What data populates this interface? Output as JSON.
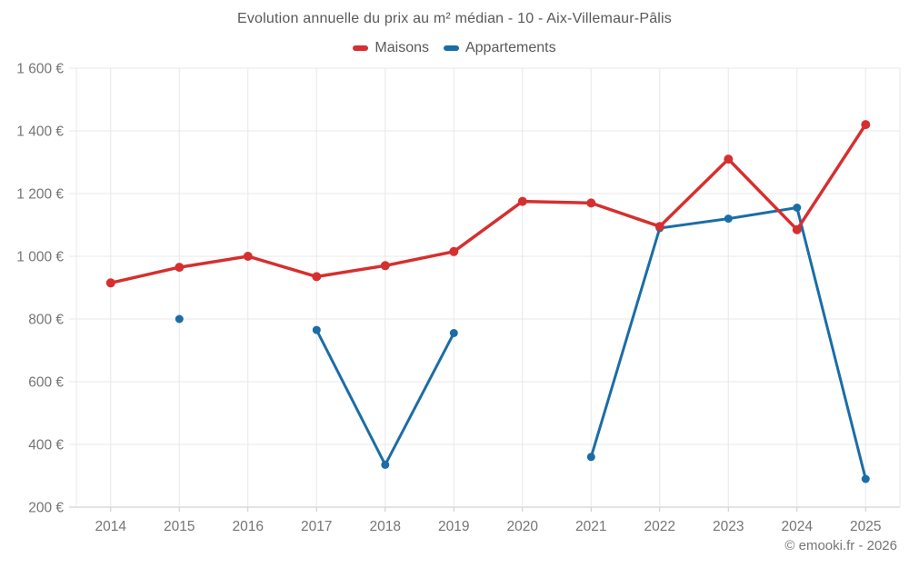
{
  "chart_data": {
    "type": "line",
    "title": "Evolution annuelle du prix au m² médian - 10 - Aix-Villemaur-Pâlis",
    "categories": [
      "2014",
      "2015",
      "2016",
      "2017",
      "2018",
      "2019",
      "2020",
      "2021",
      "2022",
      "2023",
      "2024",
      "2025"
    ],
    "series": [
      {
        "name": "Maisons",
        "color": "#d62f2f",
        "values": [
          915,
          965,
          1000,
          935,
          970,
          1015,
          1175,
          1170,
          1095,
          1310,
          1085,
          1420
        ]
      },
      {
        "name": "Appartements",
        "color": "#1b6da6",
        "values": [
          null,
          800,
          null,
          765,
          335,
          755,
          null,
          360,
          1090,
          1120,
          1155,
          290
        ]
      }
    ],
    "ylim": [
      200,
      1600
    ],
    "y_ticks": [
      {
        "value": 200,
        "label": "200 €"
      },
      {
        "value": 400,
        "label": "400 €"
      },
      {
        "value": 600,
        "label": "600 €"
      },
      {
        "value": 800,
        "label": "800 €"
      },
      {
        "value": 1000,
        "label": "1 000 €"
      },
      {
        "value": 1200,
        "label": "1 200 €"
      },
      {
        "value": 1400,
        "label": "1 400 €"
      },
      {
        "value": 1600,
        "label": "1 600 €"
      }
    ],
    "grid": true,
    "legend_position": "top"
  },
  "footer": {
    "credit": "© emooki.fr - 2026"
  }
}
